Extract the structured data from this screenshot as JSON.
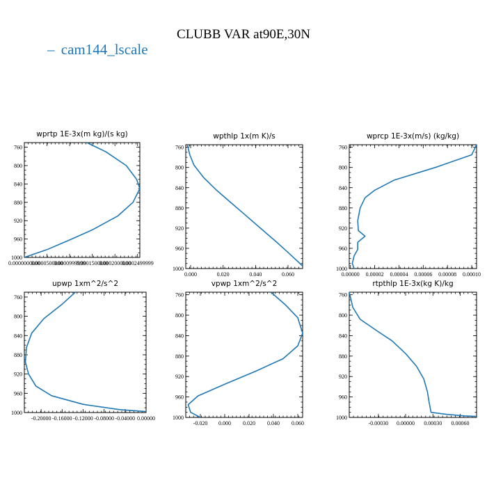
{
  "figure": {
    "title": "CLUBB VAR at90E,30N",
    "legend_label": "cam144_lscale",
    "series_color": "#1f77b4",
    "legend_dash": "–"
  },
  "chart_data": [
    {
      "type": "line",
      "title": "wprtp  1E-3x(m kg)/(s kg)",
      "x_tick_labels": [
        "0.0000000000",
        "0.0000500000",
        "0.0000999999",
        "0.0001500000",
        "0.0002000000",
        "0.0002499999"
      ],
      "y_tick_labels": [
        "760",
        "800",
        "840",
        "880",
        "920",
        "960",
        "1000"
      ],
      "y_ticks": [
        760,
        800,
        840,
        880,
        920,
        960,
        1000
      ],
      "xlim": [
        0.0,
        0.000255
      ],
      "ylim": [
        750,
        1000
      ],
      "x_ticks": [
        0.0,
        5e-05,
        0.0001,
        0.00015,
        0.0002,
        0.00025
      ],
      "points": [
        [
          0.000138,
          750
        ],
        [
          0.00018,
          770
        ],
        [
          0.000225,
          800
        ],
        [
          0.000248,
          830
        ],
        [
          0.000255,
          850
        ],
        [
          0.00024,
          880
        ],
        [
          0.000206,
          910
        ],
        [
          0.00015,
          940
        ],
        [
          0.0001,
          962
        ],
        [
          5e-05,
          983
        ],
        [
          0.0,
          1000
        ]
      ]
    },
    {
      "type": "line",
      "title": "wpthlp  1x(m K)/s",
      "x_tick_labels": [
        "0.000",
        "0.020",
        "0.040",
        "0.060"
      ],
      "y_tick_labels": [
        "760",
        "800",
        "840",
        "880",
        "920",
        "960",
        "1000"
      ],
      "y_ticks": [
        760,
        800,
        840,
        880,
        920,
        960,
        1000
      ],
      "xlim": [
        -0.003,
        0.069
      ],
      "ylim": [
        755,
        1000
      ],
      "x_ticks": [
        0.0,
        0.02,
        0.04,
        0.06
      ],
      "points": [
        [
          -0.002,
          755
        ],
        [
          -0.0005,
          775
        ],
        [
          0.002,
          795
        ],
        [
          0.008,
          820
        ],
        [
          0.016,
          845
        ],
        [
          0.025,
          870
        ],
        [
          0.034,
          895
        ],
        [
          0.043,
          920
        ],
        [
          0.052,
          945
        ],
        [
          0.06,
          968
        ],
        [
          0.069,
          995
        ]
      ]
    },
    {
      "type": "line",
      "title": "wprcp  1E-3x(m/s) (kg/kg)",
      "x_tick_labels": [
        "0.00000",
        "0.00002",
        "0.00004",
        "0.00006",
        "0.00008",
        "0.00010"
      ],
      "y_tick_labels": [
        "760",
        "800",
        "840",
        "880",
        "920",
        "960",
        "1000"
      ],
      "y_ticks": [
        760,
        800,
        840,
        880,
        920,
        960,
        1000
      ],
      "xlim": [
        -1e-06,
        0.000104
      ],
      "ylim": [
        755,
        1000
      ],
      "x_ticks": [
        0.0,
        2e-05,
        4e-05,
        6e-05,
        8e-05,
        0.0001
      ],
      "points": [
        [
          0.000104,
          755
        ],
        [
          0.0001,
          775
        ],
        [
          7e-05,
          800
        ],
        [
          3.6e-05,
          825
        ],
        [
          2e-05,
          845
        ],
        [
          1.2e-05,
          860
        ],
        [
          8e-06,
          880
        ],
        [
          6e-06,
          905
        ],
        [
          6.5e-06,
          925
        ],
        [
          1.2e-05,
          936
        ],
        [
          6e-06,
          948
        ],
        [
          6e-06,
          962
        ],
        [
          3e-06,
          975
        ],
        [
          1.5e-06,
          990
        ],
        [
          3e-06,
          1000
        ]
      ]
    },
    {
      "type": "line",
      "title": "upwp  1xm^2/s^2",
      "x_tick_labels": [
        "-0.20000",
        "-0.16000",
        "-0.12000",
        "-0.08000",
        "-0.04000",
        "0.00000"
      ],
      "y_tick_labels": [
        "760",
        "800",
        "840",
        "880",
        "920",
        "960",
        "1000"
      ],
      "y_ticks": [
        760,
        800,
        840,
        880,
        920,
        960,
        1000
      ],
      "xlim": [
        -0.232,
        0.0
      ],
      "ylim": [
        750,
        1000
      ],
      "x_ticks": [
        -0.2,
        -0.16,
        -0.12,
        -0.08,
        -0.04,
        0.0
      ],
      "points": [
        [
          -0.135,
          750
        ],
        [
          -0.16,
          775
        ],
        [
          -0.195,
          805
        ],
        [
          -0.218,
          835
        ],
        [
          -0.228,
          865
        ],
        [
          -0.23,
          895
        ],
        [
          -0.224,
          920
        ],
        [
          -0.21,
          945
        ],
        [
          -0.18,
          965
        ],
        [
          -0.12,
          983
        ],
        [
          -0.05,
          994
        ],
        [
          0.0,
          998
        ]
      ]
    },
    {
      "type": "line",
      "title": "vpwp  1xm^2/s^2",
      "x_tick_labels": [
        "-0.020",
        "0.000",
        "0.020",
        "0.040",
        "0.060"
      ],
      "y_tick_labels": [
        "760",
        "800",
        "840",
        "880",
        "920",
        "960",
        "1000"
      ],
      "y_ticks": [
        760,
        800,
        840,
        880,
        920,
        960,
        1000
      ],
      "xlim": [
        -0.032,
        0.064
      ],
      "ylim": [
        755,
        1000
      ],
      "x_ticks": [
        -0.02,
        0.0,
        0.02,
        0.04,
        0.06
      ],
      "points": [
        [
          0.038,
          755
        ],
        [
          0.05,
          780
        ],
        [
          0.06,
          805
        ],
        [
          0.064,
          835
        ],
        [
          0.06,
          860
        ],
        [
          0.048,
          885
        ],
        [
          0.025,
          910
        ],
        [
          0.0,
          935
        ],
        [
          -0.022,
          958
        ],
        [
          -0.03,
          975
        ],
        [
          -0.028,
          990
        ],
        [
          -0.02,
          1000
        ]
      ]
    },
    {
      "type": "line",
      "title": "rtpthlp  1E-3x(kg K)/kg",
      "x_tick_labels": [
        "-0.00030",
        "0.00000",
        "0.00030",
        "0.00060"
      ],
      "y_tick_labels": [
        "760",
        "800",
        "840",
        "880",
        "920",
        "960",
        "1000"
      ],
      "y_ticks": [
        760,
        800,
        840,
        880,
        920,
        960,
        1000
      ],
      "xlim": [
        -0.00062,
        0.00078
      ],
      "ylim": [
        755,
        1000
      ],
      "x_ticks": [
        -0.0003,
        0.0,
        0.0003,
        0.0006
      ],
      "points": [
        [
          -0.00062,
          755
        ],
        [
          -0.00058,
          785
        ],
        [
          -0.0005,
          808
        ],
        [
          -0.00032,
          830
        ],
        [
          -0.00015,
          850
        ],
        [
          0.0,
          875
        ],
        [
          0.00012,
          900
        ],
        [
          0.0002,
          925
        ],
        [
          0.00024,
          950
        ],
        [
          0.00026,
          972
        ],
        [
          0.00028,
          990
        ],
        [
          0.00045,
          994
        ],
        [
          0.00065,
          997
        ],
        [
          0.00078,
          998
        ]
      ]
    }
  ]
}
